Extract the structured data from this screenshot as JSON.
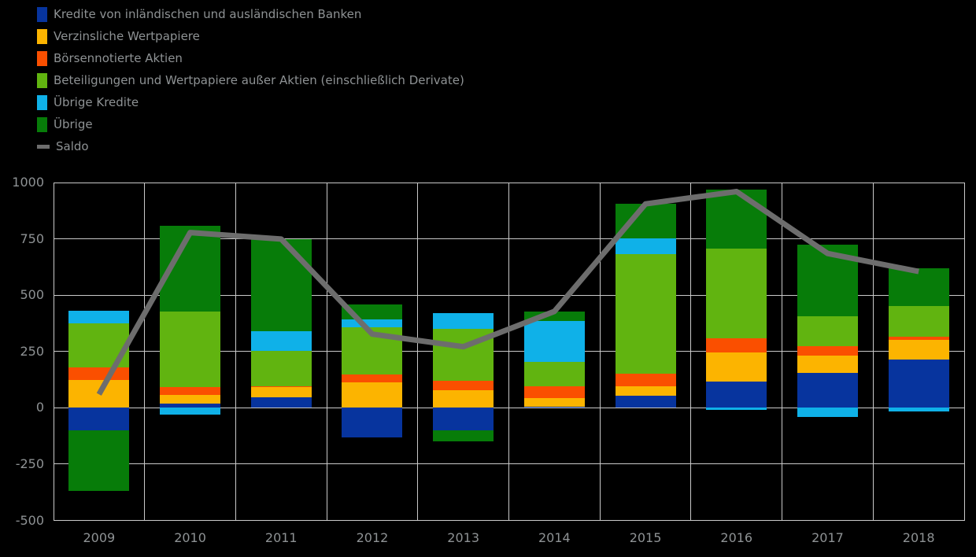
{
  "chart_data": {
    "type": "stacked_bar_line",
    "title": "",
    "categories": [
      "2009",
      "2010",
      "2011",
      "2012",
      "2013",
      "2014",
      "2015",
      "2016",
      "2017",
      "2018"
    ],
    "series": [
      {
        "name": "Kredite von inländischen und ausländischen Banken",
        "color": "#07349e",
        "values": [
          -100,
          20,
          45,
          -130,
          -100,
          5,
          55,
          115,
          155,
          215
        ]
      },
      {
        "name": "Verzinsliche Wertpapiere",
        "color": "#fcb400",
        "values": [
          125,
          38,
          46,
          112,
          78,
          38,
          40,
          130,
          75,
          85
        ]
      },
      {
        "name": "Börsennotierte Aktien",
        "color": "#fa4f00",
        "values": [
          55,
          35,
          5,
          35,
          43,
          52,
          58,
          65,
          45,
          15
        ]
      },
      {
        "name": "Beteiligungen und Wertpapiere außer Aktien (einschließlich Derivate)",
        "color": "#61b410",
        "values": [
          195,
          335,
          157,
          210,
          230,
          110,
          530,
          395,
          130,
          135
        ]
      },
      {
        "name": "Übrige Kredite",
        "color": "#0fb1e8",
        "values": [
          55,
          -30,
          87,
          35,
          70,
          180,
          70,
          -10,
          -40,
          -15
        ]
      },
      {
        "name": "Übrige",
        "color": "#077c09",
        "values": [
          -270,
          380,
          409,
          65,
          -50,
          43,
          152,
          265,
          320,
          170
        ]
      }
    ],
    "line": {
      "name": "Saldo",
      "color": "#6d6d6d",
      "values": [
        60,
        778,
        749,
        327,
        271,
        428,
        905,
        960,
        685,
        605
      ]
    },
    "ylim": [
      -500,
      1000
    ],
    "y_step": 250,
    "grid": true,
    "legend_position": "top-left",
    "background": "#000000"
  },
  "y_axis": {
    "ticks": [
      "1000",
      "750",
      "500",
      "250",
      "0",
      "-250",
      "-500"
    ]
  },
  "x_axis": {
    "categories": [
      "2009",
      "2010",
      "2011",
      "2012",
      "2013",
      "2014",
      "2015",
      "2016",
      "2017",
      "2018"
    ]
  },
  "colors": {
    "grid": "#c9c9c9",
    "text": "#8e9294",
    "background": "#000000"
  }
}
